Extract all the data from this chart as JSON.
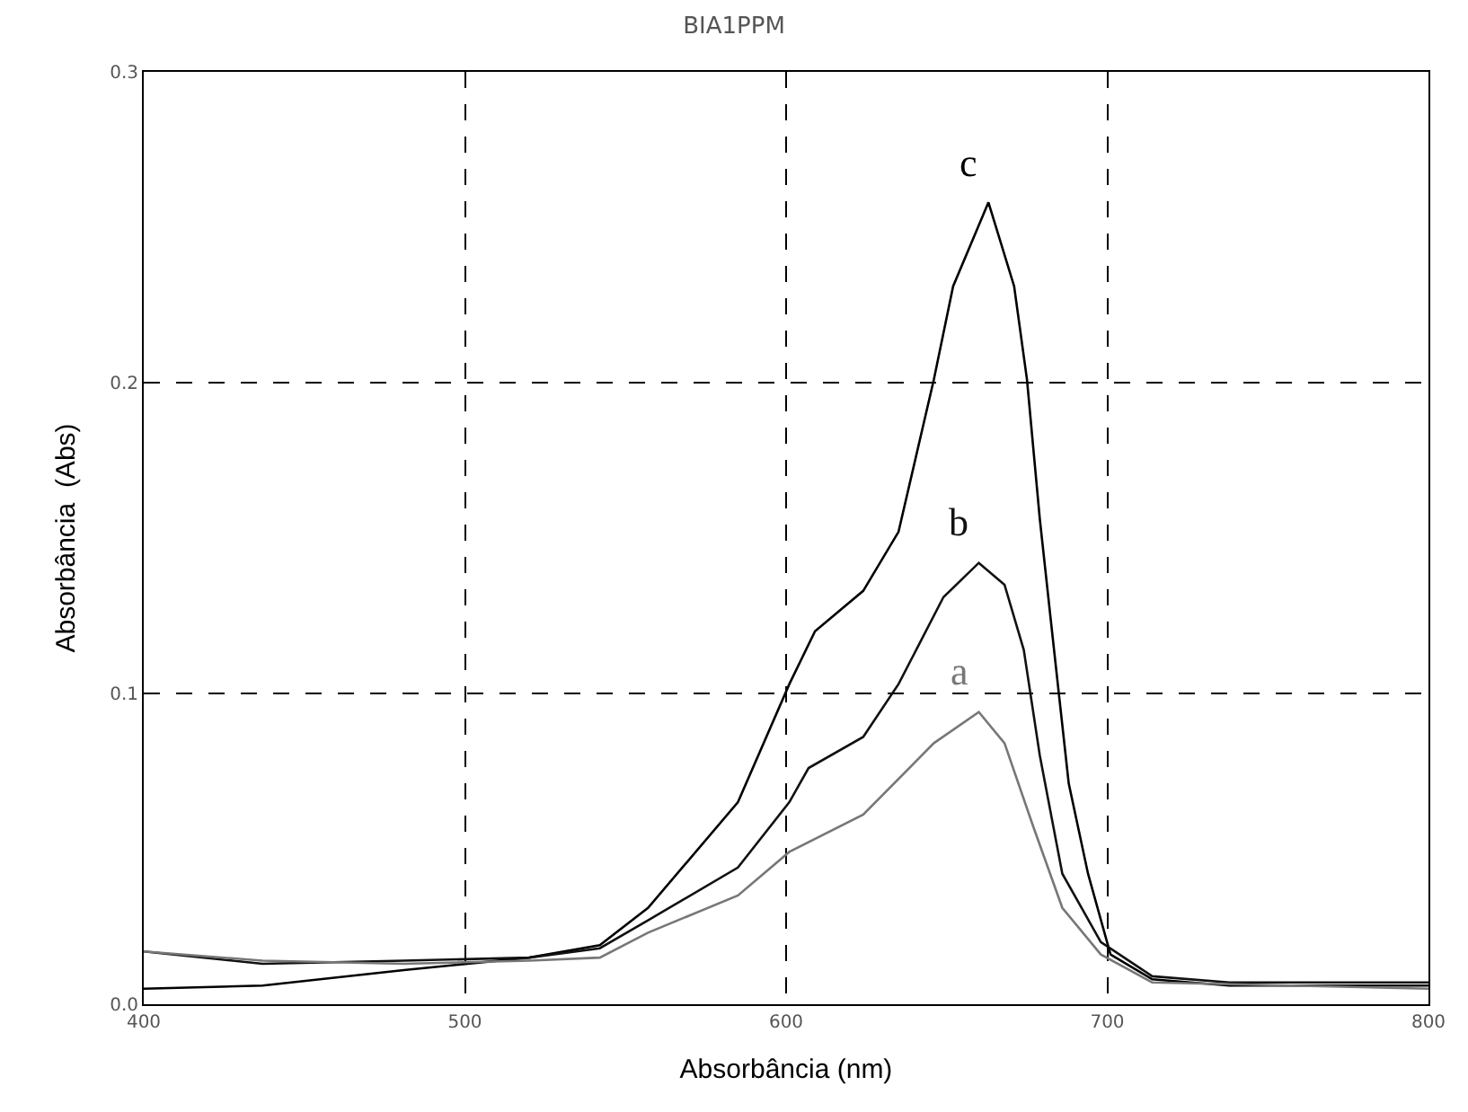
{
  "chart_data": {
    "type": "line",
    "title": "BIA1PPM",
    "xlabel": "Absorbância (nm)",
    "ylabel": "Absorbância  (Abs)",
    "xlim": [
      400,
      800
    ],
    "xticks": [
      400,
      500,
      600,
      700,
      800
    ],
    "ylim": [
      0,
      0.3
    ],
    "yticks": [
      {
        "value": 0,
        "label": "0.0"
      },
      {
        "value": 0.1,
        "label": "0.1"
      },
      {
        "value": 0.2,
        "label": "0.2"
      },
      {
        "value": 0.3,
        "label": "0.3"
      }
    ],
    "grid": true,
    "line_style": "solid",
    "marker": "none",
    "series": [
      {
        "name": "c",
        "color": "#000000",
        "x": [
          400,
          437,
          481,
          520,
          542,
          557,
          585,
          601,
          609,
          624,
          635,
          646,
          652,
          663,
          671,
          675,
          679,
          683,
          688,
          694,
          701,
          714,
          738,
          800
        ],
        "values": [
          0.005,
          0.006,
          0.011,
          0.015,
          0.019,
          0.031,
          0.065,
          0.103,
          0.12,
          0.133,
          0.152,
          0.201,
          0.231,
          0.258,
          0.231,
          0.201,
          0.156,
          0.118,
          0.071,
          0.042,
          0.016,
          0.008,
          0.006,
          0.006
        ]
      },
      {
        "name": "b",
        "color": "#111111",
        "x": [
          400,
          437,
          481,
          520,
          542,
          557,
          585,
          601,
          607,
          624,
          635,
          649,
          660,
          668,
          674,
          679,
          686,
          698,
          714,
          738,
          800
        ],
        "values": [
          0.017,
          0.013,
          0.014,
          0.015,
          0.018,
          0.027,
          0.044,
          0.065,
          0.076,
          0.086,
          0.103,
          0.131,
          0.142,
          0.135,
          0.114,
          0.08,
          0.042,
          0.02,
          0.009,
          0.007,
          0.007
        ]
      },
      {
        "name": "a",
        "color": "#777777",
        "x": [
          400,
          437,
          481,
          520,
          542,
          557,
          585,
          601,
          624,
          646,
          660,
          668,
          677,
          686,
          698,
          714,
          800
        ],
        "values": [
          0.017,
          0.014,
          0.013,
          0.014,
          0.015,
          0.023,
          0.035,
          0.049,
          0.061,
          0.084,
          0.094,
          0.084,
          0.057,
          0.031,
          0.016,
          0.007,
          0.005
        ]
      }
    ]
  }
}
